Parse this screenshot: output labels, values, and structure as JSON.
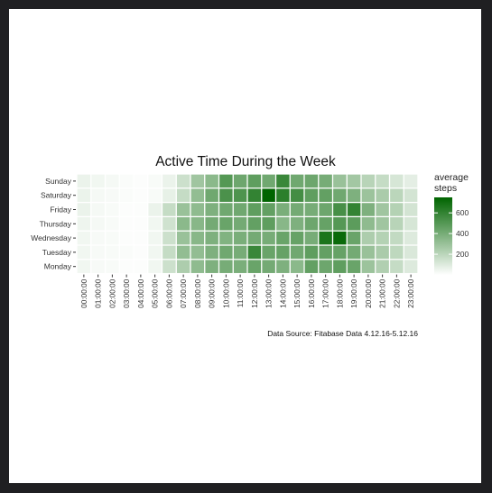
{
  "chart_data": {
    "type": "heatmap",
    "title": "Active Time During the Week",
    "caption": "Data Source: Fitabase Data 4.12.16-5.12.16",
    "xlabel": "",
    "ylabel": "",
    "x_categories": [
      "00:00:00",
      "01:00:00",
      "02:00:00",
      "03:00:00",
      "04:00:00",
      "05:00:00",
      "06:00:00",
      "07:00:00",
      "08:00:00",
      "09:00:00",
      "10:00:00",
      "11:00:00",
      "12:00:00",
      "13:00:00",
      "14:00:00",
      "15:00:00",
      "16:00:00",
      "17:00:00",
      "18:00:00",
      "19:00:00",
      "20:00:00",
      "21:00:00",
      "22:00:00",
      "23:00:00"
    ],
    "y_categories": [
      "Sunday",
      "Saturday",
      "Friday",
      "Thursday",
      "Wednesday",
      "Tuesday",
      "Monday"
    ],
    "legend": {
      "title_lines": [
        "average",
        "steps"
      ],
      "ticks": [
        200,
        400,
        600
      ],
      "range": [
        0,
        750
      ],
      "colors": {
        "low": "#ffffff",
        "high": "#006400"
      },
      "position": "right"
    },
    "values": [
      [
        60,
        40,
        30,
        15,
        10,
        20,
        60,
        150,
        280,
        340,
        500,
        430,
        470,
        420,
        580,
        420,
        430,
        400,
        300,
        270,
        210,
        170,
        120,
        80
      ],
      [
        60,
        30,
        25,
        15,
        10,
        20,
        70,
        170,
        320,
        420,
        530,
        520,
        600,
        750,
        620,
        550,
        470,
        460,
        420,
        380,
        290,
        250,
        200,
        130
      ],
      [
        60,
        30,
        20,
        10,
        10,
        60,
        170,
        300,
        330,
        380,
        420,
        420,
        470,
        460,
        390,
        410,
        400,
        430,
        540,
        600,
        380,
        280,
        220,
        130
      ],
      [
        50,
        30,
        20,
        10,
        10,
        40,
        140,
        340,
        350,
        410,
        440,
        410,
        460,
        470,
        350,
        380,
        430,
        450,
        500,
        480,
        330,
        280,
        210,
        120
      ],
      [
        40,
        25,
        20,
        10,
        10,
        40,
        150,
        300,
        350,
        380,
        370,
        390,
        410,
        400,
        440,
        450,
        400,
        670,
        720,
        440,
        240,
        220,
        180,
        100
      ],
      [
        40,
        25,
        20,
        15,
        10,
        40,
        170,
        320,
        320,
        380,
        420,
        400,
        580,
        440,
        450,
        420,
        470,
        460,
        450,
        410,
        300,
        250,
        190,
        110
      ],
      [
        40,
        25,
        20,
        10,
        10,
        40,
        150,
        240,
        330,
        380,
        400,
        390,
        440,
        410,
        380,
        340,
        460,
        430,
        470,
        440,
        290,
        230,
        170,
        100
      ]
    ]
  }
}
